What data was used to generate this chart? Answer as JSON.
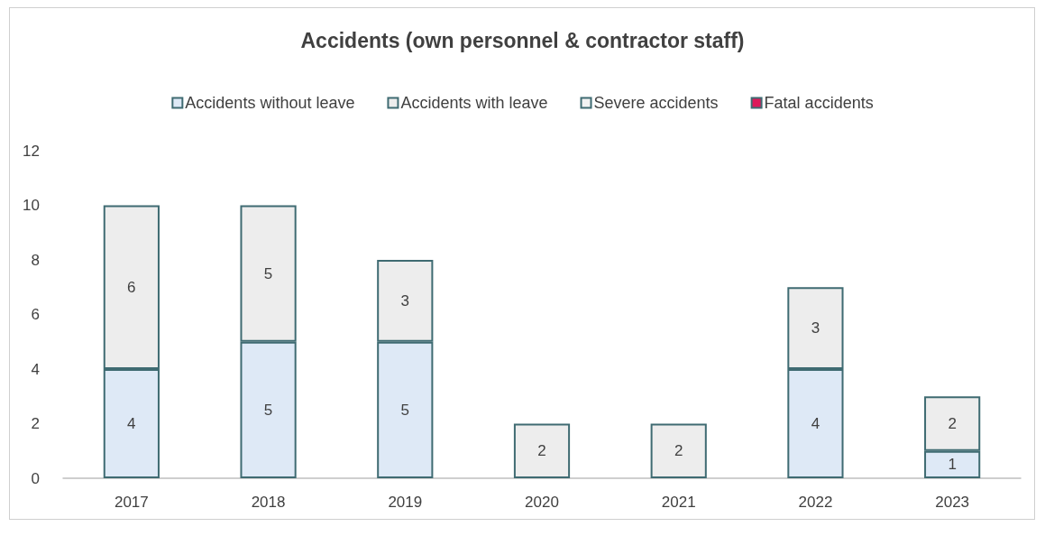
{
  "chart_data": {
    "type": "bar",
    "title": "Accidents (own personnel & contractor staff)",
    "categories": [
      "2017",
      "2018",
      "2019",
      "2020",
      "2021",
      "2022",
      "2023"
    ],
    "series": [
      {
        "name": "Accidents without leave",
        "color": "#dee9f6",
        "values": [
          4,
          5,
          5,
          0,
          0,
          4,
          1
        ],
        "value_labels": [
          "4",
          "5",
          "5",
          null,
          null,
          "4",
          "1"
        ]
      },
      {
        "name": "Accidents with leave",
        "color": "#ededed",
        "values": [
          6,
          5,
          3,
          2,
          2,
          3,
          2
        ],
        "value_labels": [
          "6",
          "5",
          "3",
          "2",
          "2",
          "3",
          "2"
        ]
      },
      {
        "name": "Severe accidents",
        "color": "#f2f2f2",
        "values": [
          0,
          0,
          0,
          0,
          0,
          0,
          0
        ],
        "value_labels": [
          null,
          null,
          null,
          null,
          null,
          null,
          null
        ]
      },
      {
        "name": "Fatal accidents",
        "color": "#dc1a5a",
        "values": [
          0,
          0,
          0,
          0,
          0,
          0,
          0
        ],
        "value_labels": [
          null,
          null,
          null,
          null,
          null,
          null,
          null
        ]
      }
    ],
    "stacked": true,
    "ylim": [
      0,
      12
    ],
    "yticks": [
      0,
      2,
      4,
      6,
      8,
      10,
      12
    ],
    "grid": false,
    "legend": "top"
  }
}
